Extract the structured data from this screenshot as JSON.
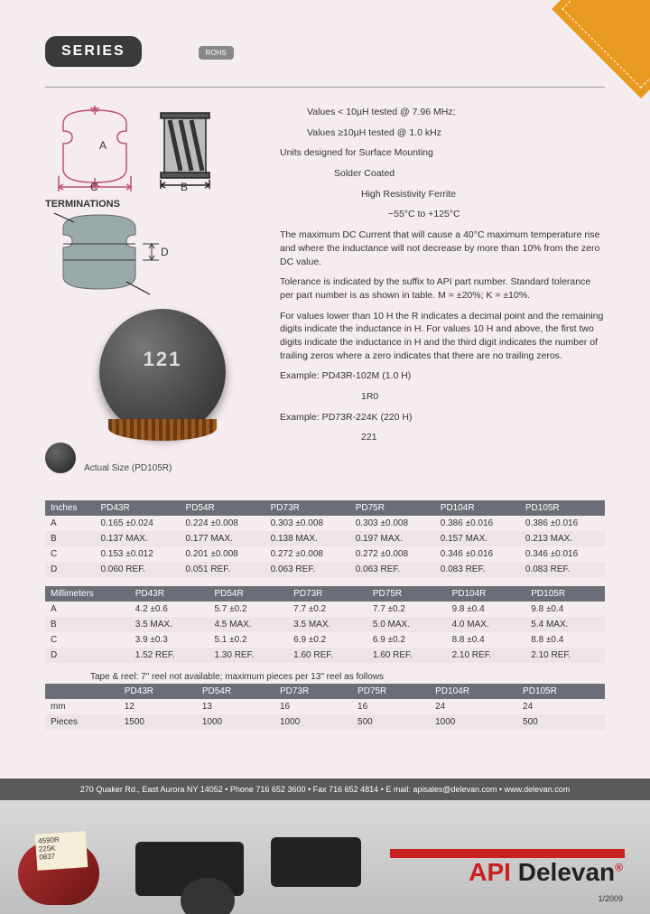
{
  "header": {
    "series": "SERIES",
    "rohs": "ROHS"
  },
  "spec_text": [
    {
      "cls": "indent1",
      "t": "Values < 10µH tested @ 7.96 MHz;"
    },
    {
      "cls": "indent1",
      "t": "Values ≥10µH tested @ 1.0 kHz"
    },
    {
      "cls": "",
      "t": ""
    },
    {
      "cls": "",
      "t": "Units designed for Surface Mounting"
    },
    {
      "cls": "indent2",
      "t": "Solder Coated"
    },
    {
      "cls": "indent3",
      "t": "High Resistivity Ferrite"
    },
    {
      "cls": "indent4",
      "t": "−55°C to +125°C"
    },
    {
      "cls": "",
      "t": "The maximum DC Current that will cause a 40°C maximum temperature rise and where the inductance will not decrease by more than 10% from the zero DC value."
    },
    {
      "cls": "",
      "t": "Tolerance is indicated by the suffix to API part number. Standard tolerance per part number is as shown in table. M = ±20%; K = ±10%."
    },
    {
      "cls": "",
      "t": "For values lower than 10 H the R indicates a decimal point and the remaining digits indicate the inductance in H. For values 10 H and above, the first two digits indicate the inductance in H and the third digit indicates the number of trailing zeros where a zero indicates that there are no trailing zeros."
    },
    {
      "cls": "",
      "t": "Example: PD43R-102M (1.0 H)"
    },
    {
      "cls": "indent3",
      "t": "1R0"
    },
    {
      "cls": "",
      "t": "Example: PD73R-224K (220 H)"
    },
    {
      "cls": "indent3",
      "t": "221"
    }
  ],
  "diagram": {
    "terminations_label": "TERMINATIONS",
    "dim_A": "A",
    "dim_B": "B",
    "dim_C": "C",
    "dim_D": "D",
    "actual_size_label": "Actual Size (PD105R)"
  },
  "tables": {
    "headers": [
      "",
      "PD43R",
      "PD54R",
      "PD73R",
      "PD75R",
      "PD104R",
      "PD105R"
    ],
    "inches": {
      "label": "Inches",
      "rows": [
        [
          "A",
          "0.165 ±0.024",
          "0.224 ±0.008",
          "0.303 ±0.008",
          "0.303 ±0.008",
          "0.386 ±0.016",
          "0.386 ±0.016"
        ],
        [
          "B",
          "0.137 MAX.",
          "0.177 MAX.",
          "0.138 MAX.",
          "0.197 MAX.",
          "0.157 MAX.",
          "0.213 MAX."
        ],
        [
          "C",
          "0.153 ±0.012",
          "0.201 ±0.008",
          "0.272 ±0.008",
          "0.272 ±0.008",
          "0.346 ±0.016",
          "0.346 ±0.016"
        ],
        [
          "D",
          "0.060 REF.",
          "0.051 REF.",
          "0.063 REF.",
          "0.063 REF.",
          "0.083 REF.",
          "0.083 REF."
        ]
      ]
    },
    "mm": {
      "label": "Millimeters",
      "rows": [
        [
          "A",
          "4.2 ±0.6",
          "5.7 ±0.2",
          "7.7 ±0.2",
          "7.7 ±0.2",
          "9.8 ±0.4",
          "9.8 ±0.4"
        ],
        [
          "B",
          "3.5 MAX.",
          "4.5 MAX.",
          "3.5 MAX.",
          "5.0 MAX.",
          "4.0 MAX.",
          "5.4 MAX."
        ],
        [
          "C",
          "3.9 ±0.3",
          "5.1 ±0.2",
          "6.9 ±0.2",
          "6.9 ±0.2",
          "8.8 ±0.4",
          "8.8 ±0.4"
        ],
        [
          "D",
          "1.52 REF.",
          "1.30 REF.",
          "1.60 REF.",
          "1.60 REF.",
          "2.10 REF.",
          "2.10 REF."
        ]
      ]
    },
    "tape": {
      "caption": "Tape & reel: 7\" reel not available; maximum pieces per 13\" reel as follows",
      "rows": [
        [
          "mm",
          "12",
          "13",
          "16",
          "16",
          "24",
          "24"
        ],
        [
          "Pieces",
          "1500",
          "1000",
          "1000",
          "500",
          "1000",
          "500"
        ]
      ]
    }
  },
  "footer": {
    "contact": "270 Quaker Rd., East Aurora NY 14052  •  Phone 716 652 3600  •  Fax 716 652 4814  •  E mail: apisales@delevan.com  •  www.delevan.com",
    "tag_lines": [
      "4590R",
      "225K",
      "0837"
    ],
    "brand_api": "API",
    "brand_del": "Delevan",
    "date": "1/2009"
  },
  "colors": {
    "page_bg": "#f5ecf0",
    "header_row": "#6b6e76",
    "corner": "#e8991f",
    "brand_red": "#c92020"
  }
}
